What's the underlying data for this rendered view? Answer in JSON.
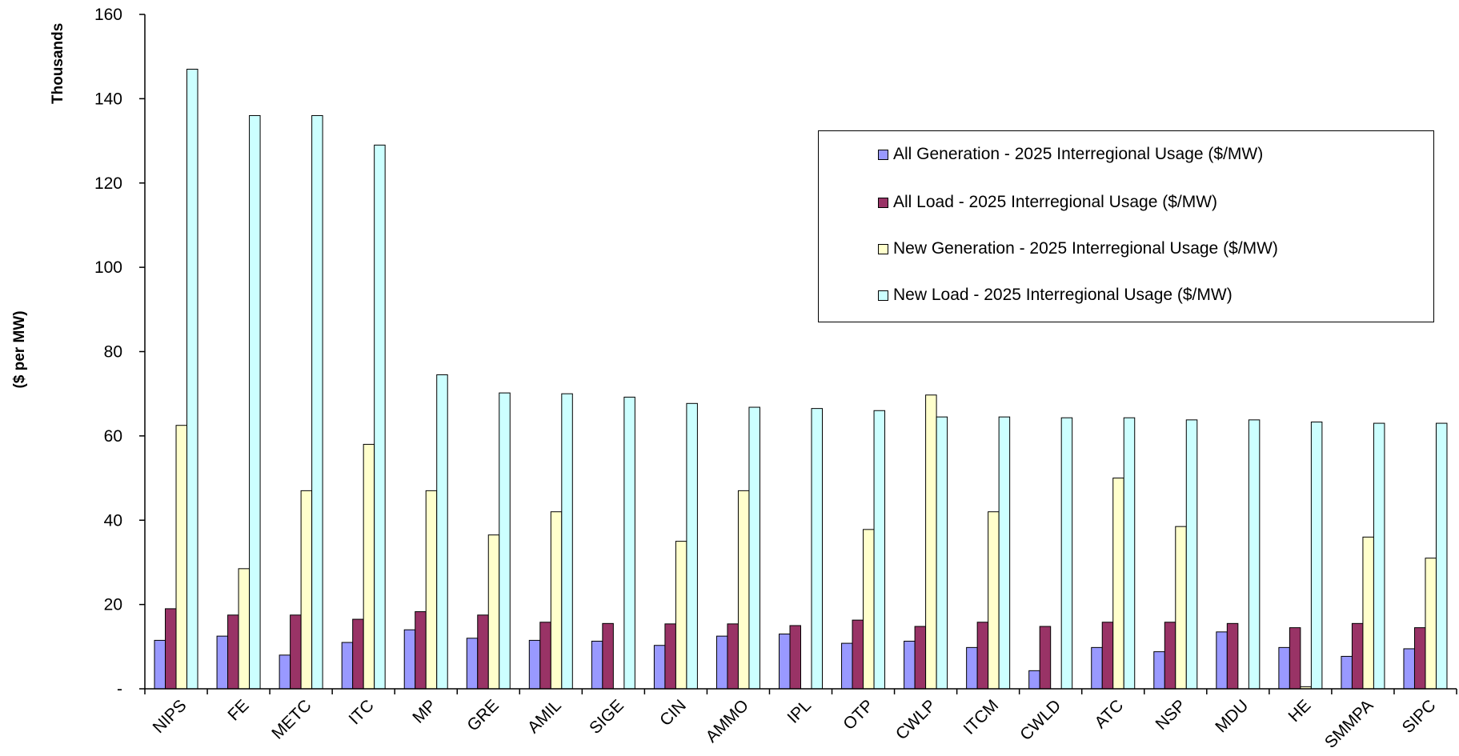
{
  "chart_data": {
    "type": "bar",
    "title": "",
    "xlabel": "",
    "ylabel": "($ per MW)",
    "y_unit_label": "Thousands",
    "ylim": [
      0,
      160
    ],
    "yticks": [
      0,
      20,
      40,
      60,
      80,
      100,
      120,
      140,
      160
    ],
    "ytick_labels": [
      "-",
      "20",
      "40",
      "60",
      "80",
      "100",
      "120",
      "140",
      "160"
    ],
    "grid": false,
    "legend_position": "top-right",
    "categories": [
      "NIPS",
      "FE",
      "METC",
      "ITC",
      "MP",
      "GRE",
      "AMIL",
      "SIGE",
      "CIN",
      "AMMO",
      "IPL",
      "OTP",
      "CWLP",
      "ITCM",
      "CWLD",
      "ATC",
      "NSP",
      "MDU",
      "HE",
      "SMMPA",
      "SIPC"
    ],
    "series": [
      {
        "name": "All Generation - 2025 Interregional Usage ($/MW)",
        "color": "#9999FF",
        "values": [
          11.5,
          12.5,
          8,
          11,
          14,
          12,
          11.5,
          11.3,
          10.3,
          12.5,
          13,
          10.8,
          11.3,
          9.8,
          4.3,
          9.8,
          8.8,
          13.5,
          9.8,
          7.7,
          9.5
        ]
      },
      {
        "name": "All Load - 2025 Interregional Usage ($/MW)",
        "color": "#993366",
        "values": [
          19,
          17.5,
          17.5,
          16.5,
          18.3,
          17.5,
          15.8,
          15.5,
          15.4,
          15.4,
          15,
          16.3,
          14.8,
          15.8,
          14.8,
          15.8,
          15.8,
          15.5,
          14.5,
          15.5,
          14.5
        ]
      },
      {
        "name": "New Generation - 2025 Interregional Usage ($/MW)",
        "color": "#FFFFCC",
        "values": [
          62.5,
          28.5,
          47,
          58,
          47,
          36.5,
          42,
          0,
          35,
          47,
          0,
          37.8,
          69.7,
          42,
          0,
          50,
          38.5,
          0,
          0.5,
          36,
          31
        ]
      },
      {
        "name": "New Load - 2025 Interregional Usage ($/MW)",
        "color": "#CCFFFF",
        "values": [
          147,
          136,
          136,
          129,
          74.5,
          70.2,
          70,
          69.2,
          67.7,
          66.8,
          66.5,
          66,
          64.5,
          64.5,
          64.3,
          64.3,
          63.8,
          63.8,
          63.3,
          63,
          63
        ]
      }
    ]
  }
}
